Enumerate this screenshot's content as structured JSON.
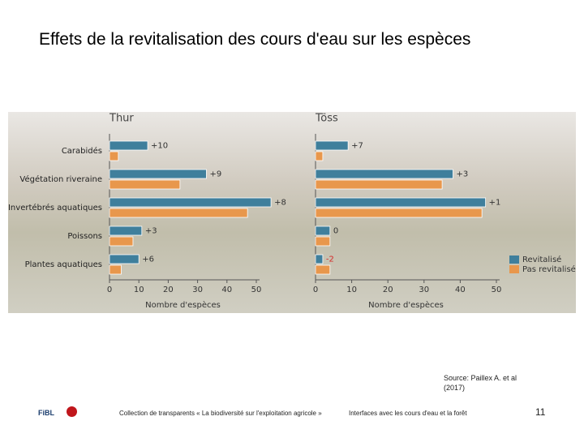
{
  "title": "Effets de la revitalisation des cours d'eau sur les espèces",
  "chart_data": [
    {
      "type": "bar",
      "orientation": "horizontal",
      "title": "Thur",
      "categories": [
        "Carabidés",
        "Végétation riveraine",
        "Invertébrés aquatiques",
        "Poissons",
        "Plantes aquatiques"
      ],
      "series": [
        {
          "color": "#3f7f9c",
          "values": [
            13,
            33,
            55,
            11,
            10
          ]
        },
        {
          "color": "#e8974c",
          "values": [
            3,
            24,
            47,
            8,
            4
          ]
        }
      ],
      "differences": [
        "+10",
        "+9",
        "+8",
        "+3",
        "+6"
      ],
      "xlim": [
        0,
        50
      ],
      "xticks": [
        0,
        10,
        20,
        30,
        40,
        50
      ],
      "x_label": "Nombre d'espèces"
    },
    {
      "type": "bar",
      "orientation": "horizontal",
      "title": "Töss",
      "series": [
        {
          "name": "Revitalisé",
          "color": "#3f7f9c",
          "values": [
            9,
            38,
            47,
            4,
            2
          ]
        },
        {
          "name": "Pas revitalisé",
          "color": "#e8974c",
          "values": [
            2,
            35,
            46,
            4,
            4
          ]
        }
      ],
      "differences": [
        "+7",
        "+3",
        "+1",
        "0",
        "-2"
      ],
      "xlim": [
        0,
        50
      ],
      "xticks": [
        0,
        10,
        20,
        30,
        40,
        50
      ],
      "x_label": "Nombre d'espèces"
    }
  ],
  "source": "Source: Paillex A. et al (2017)",
  "footer": {
    "logo": "FiBL",
    "collection": "Collection de transparents « La biodiversité sur l'exploitation agricole »",
    "topic": "Interfaces avec les cours d'eau et la forêt",
    "page": "11"
  }
}
